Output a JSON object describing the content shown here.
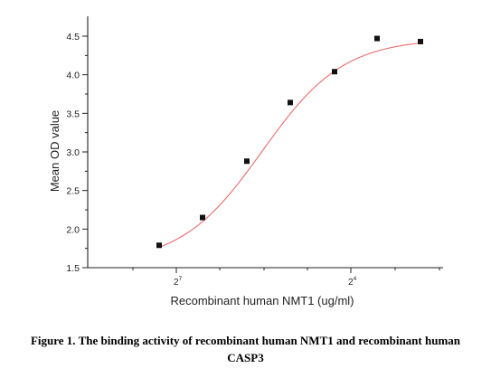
{
  "chart_data": {
    "type": "scatter",
    "title": "",
    "xlabel": "Recombinant human  NMT1  (ug/ml)",
    "ylabel": "Mean OD value",
    "x_scale": "log2",
    "x_tick_labels": [
      {
        "base": "2",
        "exp": "7"
      },
      {
        "base": "2",
        "exp": "4"
      }
    ],
    "ylim": [
      1.5,
      4.6
    ],
    "y_ticks": [
      "1.5",
      "2.0",
      "2.5",
      "3.0",
      "3.5",
      "4.0",
      "4.5"
    ],
    "grid": false,
    "series": [
      {
        "values": [
          1.79,
          2.15,
          2.88,
          3.64,
          4.04,
          4.47,
          4.43
        ],
        "marker": "square",
        "color": "#111111"
      }
    ],
    "fit_curve": {
      "color": "#ee6a6a",
      "bottom": 1.55,
      "top": 4.47
    }
  },
  "caption": {
    "line1": "Figure 1. The binding activity of recombinant human NMT1 and recombinant human",
    "line2": "CASP3"
  }
}
